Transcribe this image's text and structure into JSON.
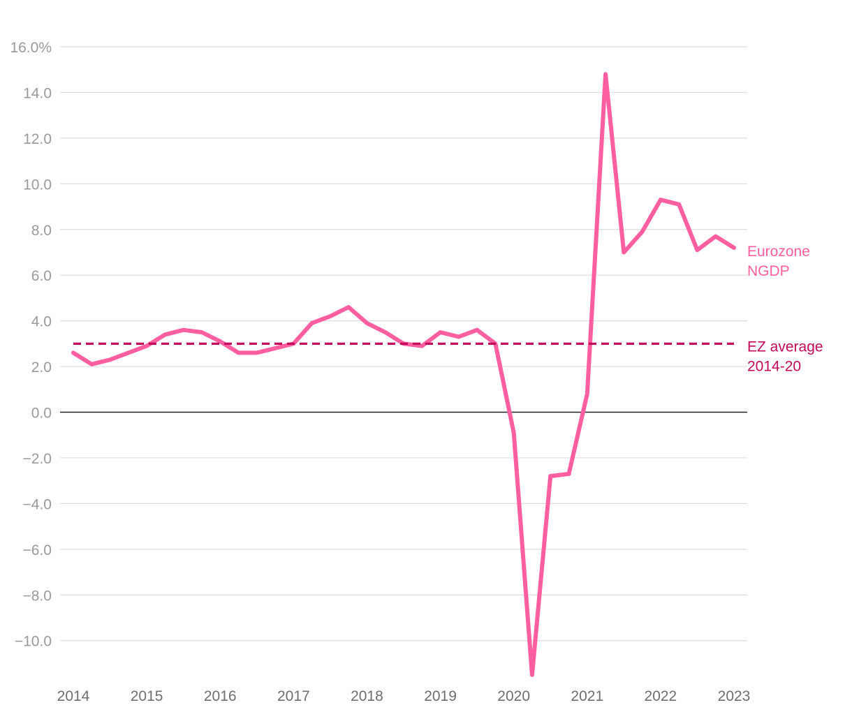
{
  "chart_data": {
    "type": "line",
    "title": "",
    "xlabel": "",
    "ylabel": "",
    "y_unit_suffix": "%",
    "ylim": [
      -11.5,
      16.0
    ],
    "yticks": [
      16,
      14,
      12,
      10,
      8,
      6,
      4,
      2,
      0,
      -2,
      -4,
      -6,
      -8,
      -10
    ],
    "ytick_labels": [
      "16.0%",
      "14.0",
      "12.0",
      "10.0",
      "8.0",
      "6.0",
      "4.0",
      "2.0",
      "0.0",
      "−2.0",
      "−4.0",
      "−6.0",
      "−8.0",
      "−10.0"
    ],
    "xlim": [
      2014.0,
      2023.0
    ],
    "xticks": [
      2014,
      2015,
      2016,
      2017,
      2018,
      2019,
      2020,
      2021,
      2022,
      2023
    ],
    "xtick_labels": [
      "2014",
      "2015",
      "2016",
      "2017",
      "2018",
      "2019",
      "2020",
      "2021",
      "2022",
      "2023"
    ],
    "series": [
      {
        "name": "Eurozone NGDP",
        "label_lines": [
          "Eurozone",
          "NGDP"
        ],
        "color": "#ff5fa0",
        "style": "solid",
        "x": [
          2014.0,
          2014.25,
          2014.5,
          2014.75,
          2015.0,
          2015.25,
          2015.5,
          2015.75,
          2016.0,
          2016.25,
          2016.5,
          2016.75,
          2017.0,
          2017.25,
          2017.5,
          2017.75,
          2018.0,
          2018.25,
          2018.5,
          2018.75,
          2019.0,
          2019.25,
          2019.5,
          2019.75,
          2020.0,
          2020.25,
          2020.5,
          2020.75,
          2021.0,
          2021.25,
          2021.5,
          2021.75,
          2022.0,
          2022.25,
          2022.5,
          2022.75,
          2023.0
        ],
        "values": [
          2.6,
          2.1,
          2.3,
          2.6,
          2.9,
          3.4,
          3.6,
          3.5,
          3.1,
          2.6,
          2.6,
          2.8,
          3.0,
          3.9,
          4.2,
          4.6,
          3.9,
          3.5,
          3.0,
          2.9,
          3.5,
          3.3,
          3.6,
          3.0,
          -0.9,
          -11.5,
          -2.8,
          -2.7,
          0.8,
          14.8,
          7.0,
          7.9,
          9.3,
          9.1,
          7.1,
          7.7,
          7.2
        ]
      },
      {
        "name": "EZ average 2014-20",
        "label_lines": [
          "EZ average",
          "2014-20"
        ],
        "color": "#c2095a",
        "style": "dashed",
        "x": [
          2014.0,
          2023.0
        ],
        "values": [
          3.0,
          3.0
        ]
      }
    ]
  }
}
